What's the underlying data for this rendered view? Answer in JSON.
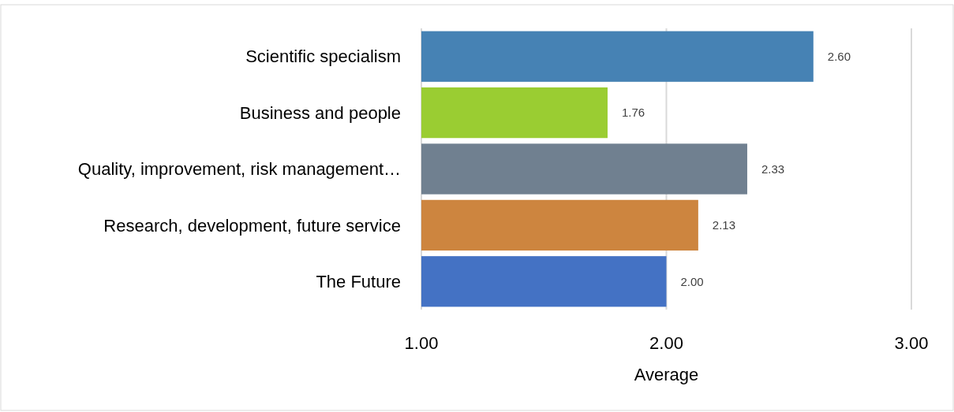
{
  "chart_data": {
    "type": "bar",
    "orientation": "horizontal",
    "xlabel": "Average",
    "categories": [
      "Scientific specialism",
      "Business and people",
      "Quality, improvement, risk management…",
      "Research, development, future service",
      "The Future"
    ],
    "values": [
      2.6,
      1.76,
      2.33,
      2.13,
      2.0
    ],
    "colors": [
      "#4682b4",
      "#9acd32",
      "#708090",
      "#cd853f",
      "#4472c4"
    ],
    "value_labels": [
      "2.60",
      "1.76",
      "2.33",
      "2.13",
      "2.00"
    ],
    "xlim": [
      1,
      3
    ],
    "xticks": [
      {
        "value": 1,
        "label": "1.00"
      },
      {
        "value": 2,
        "label": "2.00"
      },
      {
        "value": 3,
        "label": "3.00"
      }
    ],
    "grid": "x"
  }
}
